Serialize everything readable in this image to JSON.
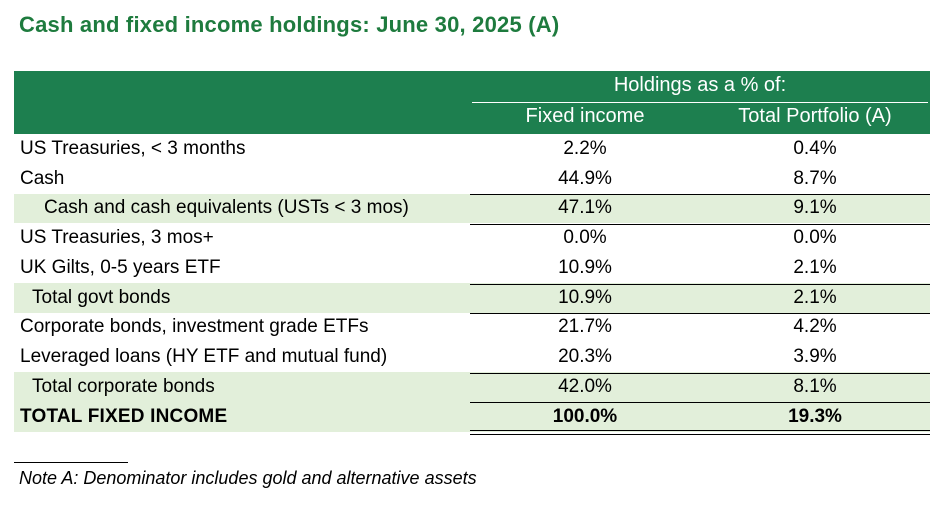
{
  "title": "Cash and fixed income holdings: June 30, 2025 (A)",
  "header": {
    "group": "Holdings as a % of:",
    "col1": "Fixed income",
    "col2": "Total Portfolio (A)"
  },
  "rows": [
    {
      "label": "US Treasuries, < 3 months",
      "fixed_income": "2.2%",
      "total_portfolio": "0.4%"
    },
    {
      "label": "Cash",
      "fixed_income": "44.9%",
      "total_portfolio": "8.7%"
    },
    {
      "label": "Cash and cash equivalents (USTs < 3 mos)",
      "fixed_income": "47.1%",
      "total_portfolio": "9.1%"
    },
    {
      "label": "US Treasuries, 3 mos+",
      "fixed_income": "0.0%",
      "total_portfolio": "0.0%"
    },
    {
      "label": "UK Gilts, 0-5 years ETF",
      "fixed_income": "10.9%",
      "total_portfolio": "2.1%"
    },
    {
      "label": "Total govt bonds",
      "fixed_income": "10.9%",
      "total_portfolio": "2.1%"
    },
    {
      "label": "Corporate bonds, investment grade ETFs",
      "fixed_income": "21.7%",
      "total_portfolio": "4.2%"
    },
    {
      "label": "Leveraged loans (HY ETF and mutual fund)",
      "fixed_income": "20.3%",
      "total_portfolio": "3.9%"
    },
    {
      "label": "Total corporate bonds",
      "fixed_income": "42.0%",
      "total_portfolio": "8.1%"
    },
    {
      "label": "TOTAL FIXED INCOME",
      "fixed_income": "100.0%",
      "total_portfolio": "19.3%"
    }
  ],
  "note": "Note A: Denominator includes gold and alternative assets",
  "colors": {
    "title": "#1e7b3e",
    "header_bg": "#1d7f4f",
    "subtotal_bg": "#e2efda"
  }
}
